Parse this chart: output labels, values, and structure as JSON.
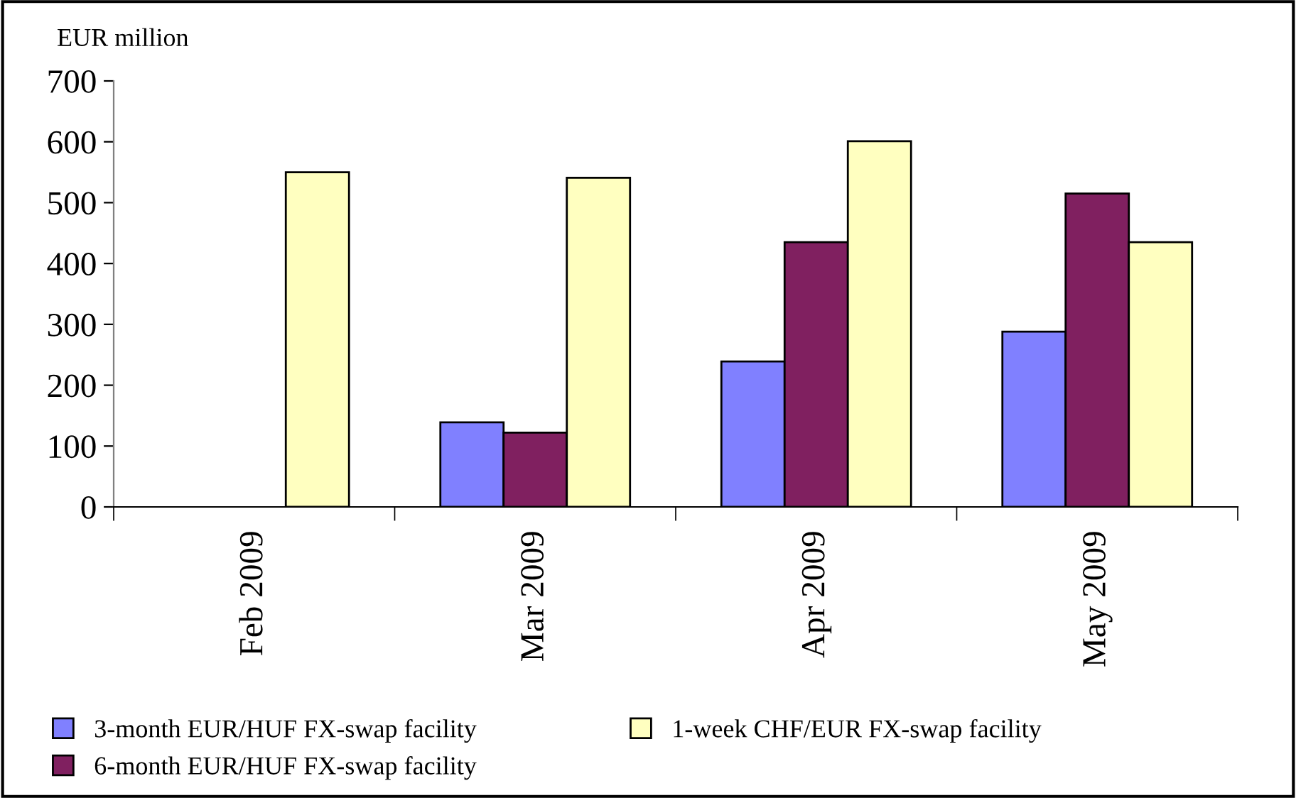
{
  "chart_data": {
    "type": "bar",
    "ylabel": "EUR million",
    "categories": [
      "Feb 2009",
      "Mar 2009",
      "Apr 2009",
      "May 2009"
    ],
    "series": [
      {
        "name": "3-month EUR/HUF FX-swap facility",
        "color": "#8080ff",
        "values": [
          null,
          139,
          239,
          288
        ]
      },
      {
        "name": "6-month EUR/HUF FX-swap facility",
        "color": "#802060",
        "values": [
          null,
          122,
          435,
          515
        ]
      },
      {
        "name": "1-week CHF/EUR FX-swap facility",
        "color": "#ffffc0",
        "values": [
          550,
          541,
          601,
          435
        ]
      }
    ],
    "ylim": [
      0,
      700
    ],
    "yticks": [
      0,
      100,
      200,
      300,
      400,
      500,
      600,
      700
    ],
    "grid": false,
    "legend": "bottom"
  }
}
